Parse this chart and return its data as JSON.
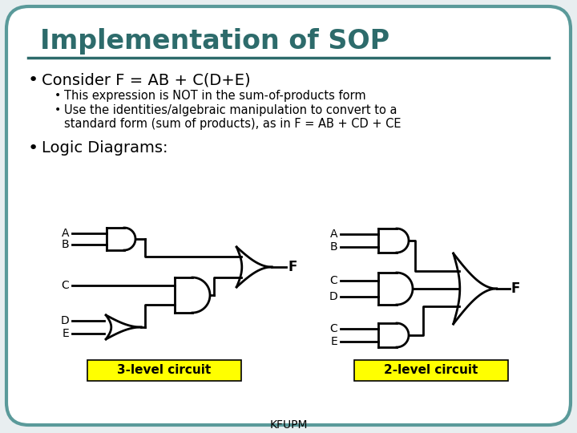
{
  "title": "Implementation of SOP",
  "title_color": "#2d6b6b",
  "bg_color": "#e8eef0",
  "border_color": "#5a9a9a",
  "bullet1": "Consider F = AB + C(D+E)",
  "sub1": "This expression is NOT in the sum-of-products form",
  "sub2": "Use the identities/algebraic manipulation to convert to a\nstandard form (sum of products), as in F = AB + CD + CE",
  "bullet2": "Logic Diagrams:",
  "label_3level": "3-level circuit",
  "label_2level": "2-level circuit",
  "footer": "KFUPM",
  "yellow": "#ffff00",
  "black": "#000000",
  "white": "#ffffff",
  "lw": 2.0
}
